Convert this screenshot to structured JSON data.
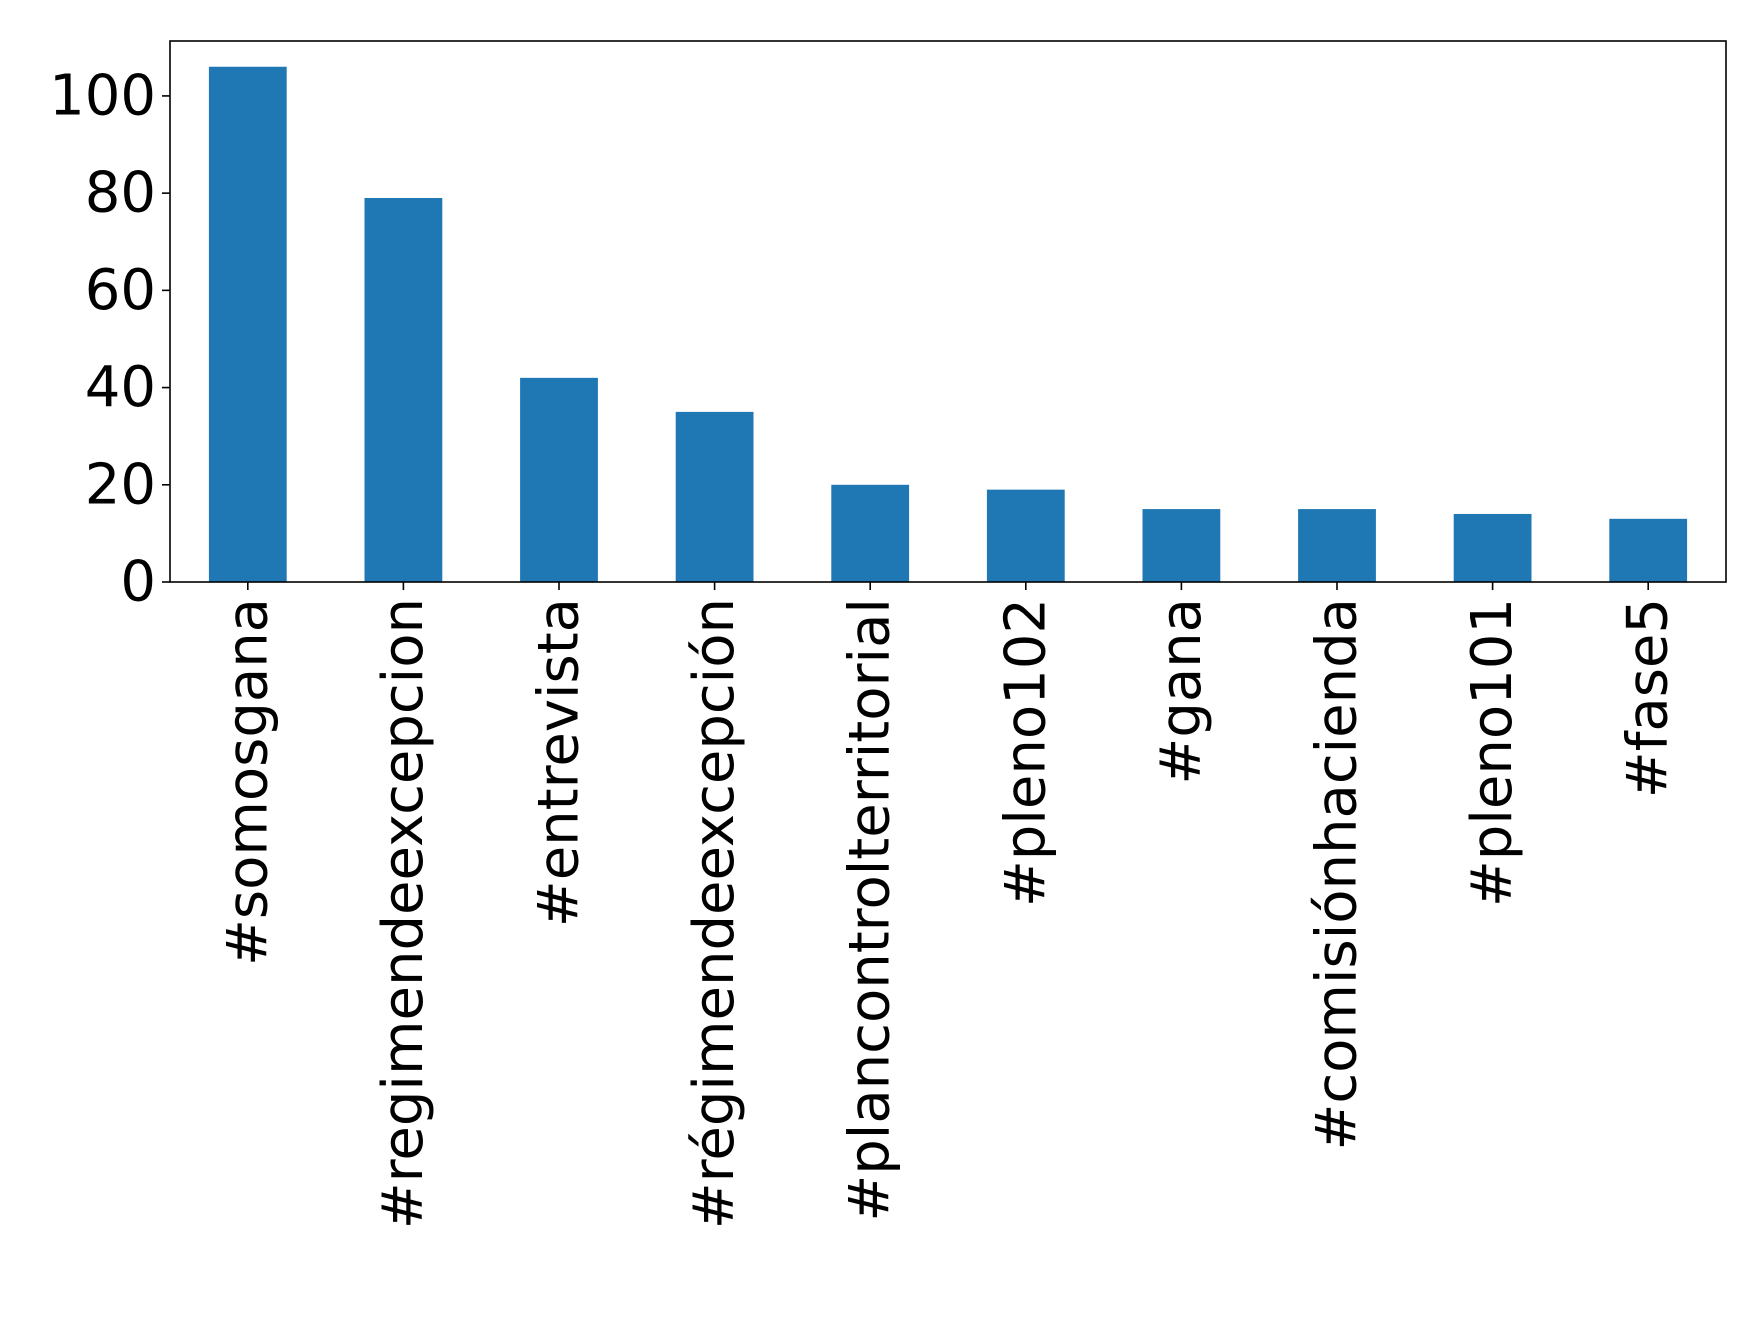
{
  "chart_data": {
    "type": "bar",
    "title": "",
    "xlabel": "",
    "ylabel": "",
    "categories": [
      "#somosgana",
      "#regimendeexcepcion",
      "#entrevista",
      "#régimendeexcepción",
      "#plancontrolterritorial",
      "#pleno102",
      "#gana",
      "#comisiónhacienda",
      "#pleno101",
      "#fase5"
    ],
    "values": [
      106,
      79,
      42,
      35,
      20,
      19,
      15,
      15,
      14,
      13
    ],
    "ylim": [
      0,
      111.3
    ],
    "yticks": [
      0,
      20,
      40,
      60,
      80,
      100
    ],
    "ytick_labels": [
      "0",
      "20",
      "40",
      "60",
      "80",
      "100"
    ],
    "bar_color": "#1f77b4",
    "grid": false,
    "legend": "none"
  }
}
